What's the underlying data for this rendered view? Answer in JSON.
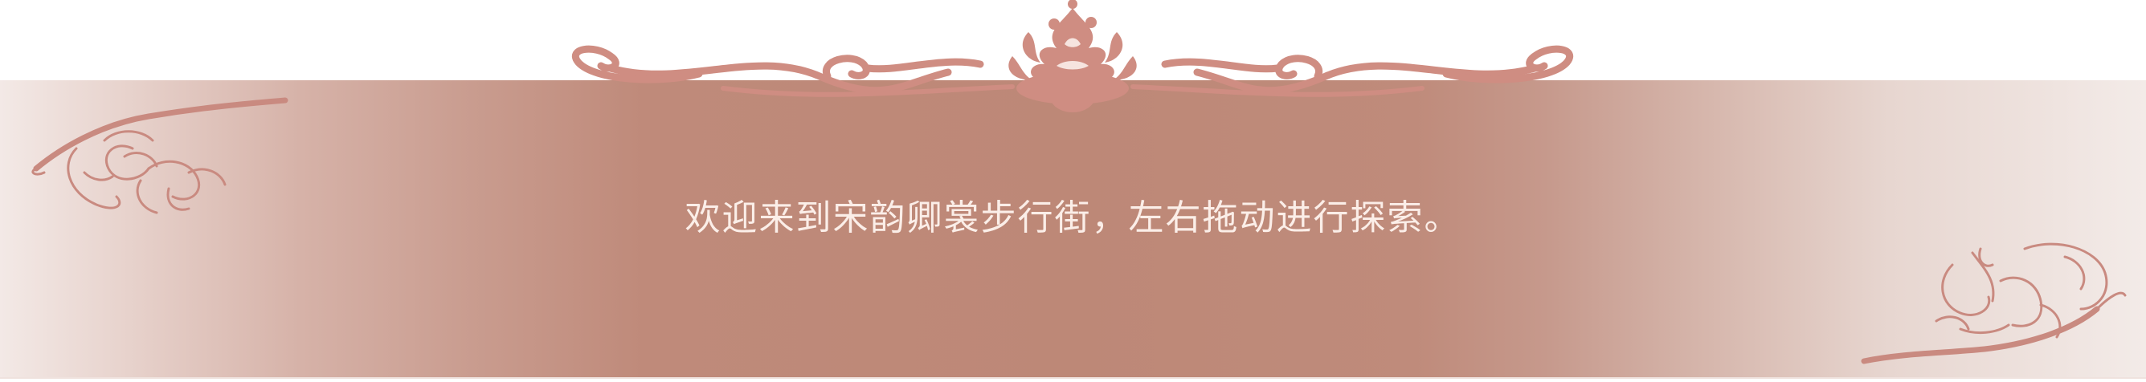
{
  "banner": {
    "message": "欢迎来到宋韵卿裳步行街，左右拖动进行探索。"
  },
  "colors": {
    "ornament": "#cf8d82",
    "ornament_dark": "#b8736a",
    "text": "#fbeee8",
    "banner_center": "#bd8877",
    "banner_edge": "#f3e9e6"
  },
  "icons": {
    "top": "peony-scroll-ornament-icon",
    "left": "peony-branch-icon",
    "right": "peony-branch-icon"
  }
}
